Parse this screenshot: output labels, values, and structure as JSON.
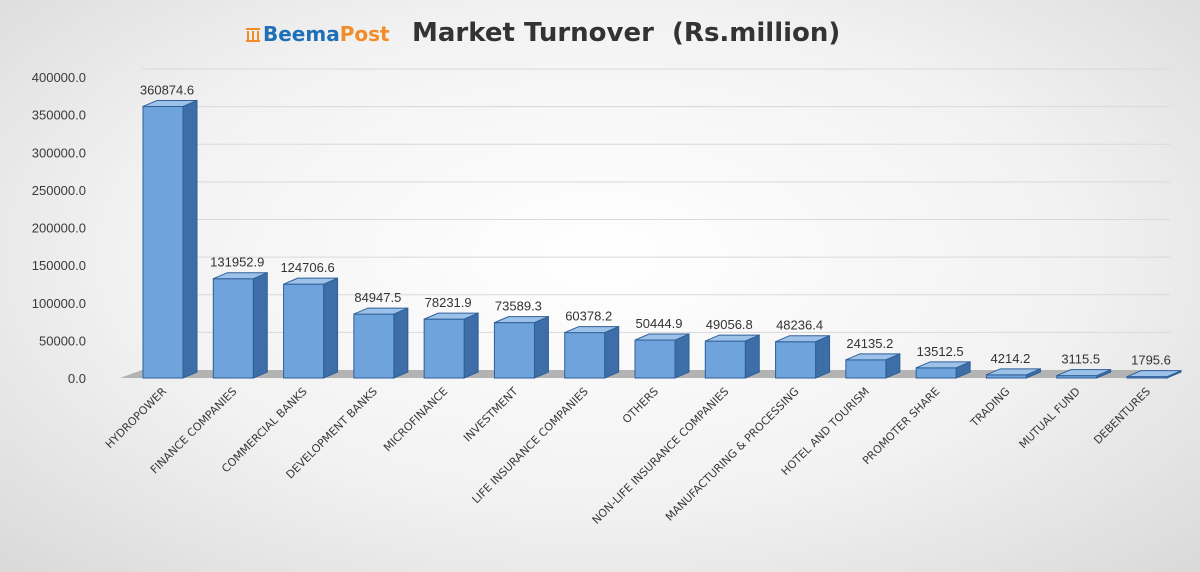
{
  "logo": {
    "beema": "Beema",
    "post": "Post"
  },
  "chart_data": {
    "type": "bar",
    "title": "Market Turnover  (Rs.million)",
    "categories": [
      "HYDROPOWER",
      "FINANCE COMPANIES",
      "COMMERCIAL BANKS",
      "DEVELOPMENT BANKS",
      "MICROFINANCE",
      "INVESTMENT",
      "LIFE INSURANCE COMPANIES",
      "OTHERS",
      "NON-LIFE INSURANCE COMPANIES",
      "MANUFACTURING & PROCESSING",
      "HOTEL AND TOURISM",
      "PROMOTER SHARE",
      "TRADING",
      "MUTUAL FUND",
      "DEBENTURES"
    ],
    "values": [
      360874.6,
      131952.9,
      124706.6,
      84947.5,
      78231.9,
      73589.3,
      60378.2,
      50444.9,
      49056.8,
      48236.4,
      24135.2,
      13512.5,
      4214.2,
      3115.5,
      1795.6
    ],
    "data_labels": [
      "360874.6",
      "131952.9",
      "124706.6",
      "84947.5",
      "78231.9",
      "73589.3",
      "60378.2",
      "50444.9",
      "49056.8",
      "48236.4",
      "24135.2",
      "13512.5",
      "4214.2",
      "3115.5",
      "1795.6"
    ],
    "yticks": [
      "0.0",
      "50000.0",
      "100000.0",
      "150000.0",
      "200000.0",
      "250000.0",
      "300000.0",
      "350000.0",
      "400000.0"
    ],
    "ylim": [
      0,
      400000
    ],
    "grid": true,
    "colors": {
      "bar_front": "#6fa3dc",
      "bar_side": "#3d6ea8",
      "bar_top": "#9cc2ea",
      "bar_edge": "#2f5f98",
      "floor": "#b3b3b3",
      "grid": "#d9d9d9"
    }
  }
}
